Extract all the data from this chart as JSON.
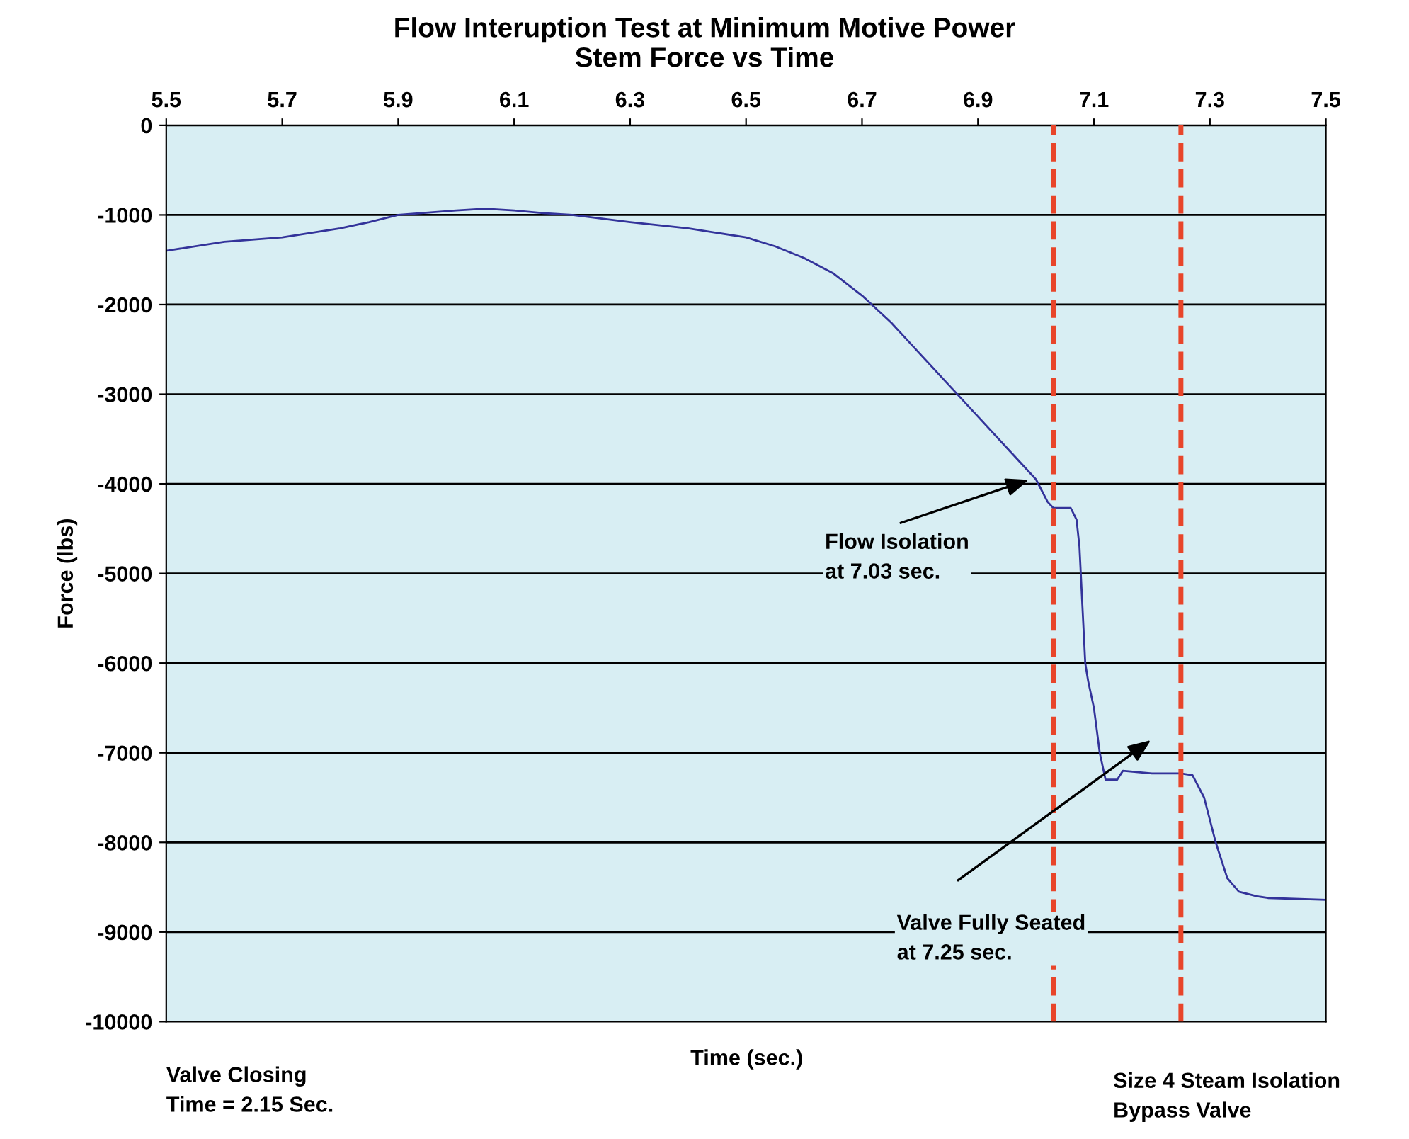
{
  "chart_data": {
    "type": "line",
    "title": "Flow Interuption Test at Minimum Motive Power\nStem Force vs Time",
    "xlabel": "Time (sec.)",
    "ylabel": "Force (lbs)",
    "x": [
      5.5,
      5.6,
      5.7,
      5.8,
      5.85,
      5.9,
      6.0,
      6.05,
      6.1,
      6.15,
      6.2,
      6.3,
      6.4,
      6.5,
      6.55,
      6.6,
      6.65,
      6.7,
      6.75,
      6.8,
      6.85,
      6.9,
      6.95,
      7.0,
      7.02,
      7.03,
      7.06,
      7.07,
      7.075,
      7.085,
      7.09,
      7.1,
      7.11,
      7.12,
      7.14,
      7.15,
      7.2,
      7.25,
      7.27,
      7.29,
      7.31,
      7.33,
      7.35,
      7.38,
      7.4,
      7.5
    ],
    "series": [
      {
        "color": "#33339a",
        "values": [
          -1400,
          -1300,
          -1250,
          -1150,
          -1080,
          -1000,
          -950,
          -930,
          -950,
          -980,
          -1000,
          -1080,
          -1150,
          -1250,
          -1350,
          -1480,
          -1650,
          -1900,
          -2200,
          -2550,
          -2900,
          -3250,
          -3600,
          -3950,
          -4200,
          -4270,
          -4270,
          -4400,
          -4700,
          -6000,
          -6200,
          -6500,
          -7000,
          -7300,
          -7300,
          -7200,
          -7230,
          -7230,
          -7250,
          -7500,
          -8000,
          -8400,
          -8550,
          -8600,
          -8620,
          -8640
        ]
      }
    ],
    "xlim": [
      5.5,
      7.5
    ],
    "xticks": [
      5.5,
      5.7,
      5.9,
      6.1,
      6.3,
      6.5,
      6.7,
      6.9,
      7.1,
      7.3,
      7.5
    ],
    "ylim": [
      -10000,
      0
    ],
    "yticks": [
      -10000,
      -9000,
      -8000,
      -7000,
      -6000,
      -5000,
      -4000,
      -3000,
      -2000,
      -1000,
      0
    ],
    "grid": "y",
    "marker": "none",
    "line_style": "solid",
    "ref_lines": [
      {
        "axis": "x",
        "value": 7.03,
        "color": "#e8452a",
        "line_style": "dashed"
      },
      {
        "axis": "x",
        "value": 7.25,
        "color": "#e8452a",
        "line_style": "dashed"
      }
    ],
    "annotations": [
      "Flow Isolation\nat 7.03 sec.",
      "Valve Fully Seated\nat 7.25 sec.",
      "Valve Closing\nTime = 2.15 Sec.",
      "Size 4 Steam Isolation\nBypass Valve"
    ]
  }
}
